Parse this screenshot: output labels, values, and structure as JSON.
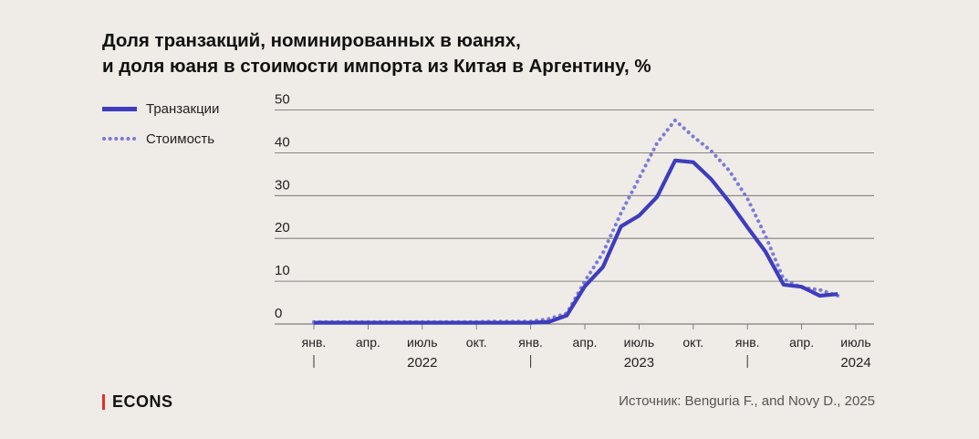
{
  "title_lines": [
    "Доля транзакций, номинированных в юанях,",
    "и доля юаня в стоимости импорта из Китая в Аргентину, %"
  ],
  "brand": "ECONS",
  "source": "Источник: Benguria F., and Novy D., 2025",
  "colors": {
    "background": "#efebe6",
    "series_transactions": "#3d3dbd",
    "series_value": "#7a7ad8",
    "grid": "#666666",
    "brand_accent": "#e0312a"
  },
  "chart_data": {
    "type": "line",
    "ylim": [
      0,
      50
    ],
    "yticks": [
      0,
      10,
      20,
      30,
      40,
      50
    ],
    "grid": true,
    "legend_placement": "left",
    "x_month_labels": [
      {
        "month": "2022-01",
        "label": "янв."
      },
      {
        "month": "2022-04",
        "label": "апр."
      },
      {
        "month": "2022-07",
        "label": "июль"
      },
      {
        "month": "2022-10",
        "label": "окт."
      },
      {
        "month": "2023-01",
        "label": "янв."
      },
      {
        "month": "2023-04",
        "label": "апр."
      },
      {
        "month": "2023-07",
        "label": "июль"
      },
      {
        "month": "2023-10",
        "label": "окт."
      },
      {
        "month": "2024-01",
        "label": "янв."
      },
      {
        "month": "2024-04",
        "label": "апр."
      },
      {
        "month": "2024-07",
        "label": "июль"
      }
    ],
    "x_year_labels": [
      {
        "month": "2022-07",
        "label": "2022"
      },
      {
        "month": "2023-07",
        "label": "2023"
      },
      {
        "month": "2024-07",
        "label": "2024"
      }
    ],
    "x_year_separators": [
      "2022-01",
      "2023-01",
      "2024-01"
    ],
    "series": [
      {
        "name": "Транзакции",
        "style": "solid",
        "points": [
          [
            "2022-01",
            0.3
          ],
          [
            "2022-02",
            0.3
          ],
          [
            "2022-03",
            0.3
          ],
          [
            "2022-04",
            0.3
          ],
          [
            "2022-05",
            0.3
          ],
          [
            "2022-06",
            0.3
          ],
          [
            "2022-07",
            0.3
          ],
          [
            "2022-08",
            0.3
          ],
          [
            "2022-09",
            0.3
          ],
          [
            "2022-10",
            0.3
          ],
          [
            "2022-11",
            0.3
          ],
          [
            "2022-12",
            0.3
          ],
          [
            "2023-01",
            0.3
          ],
          [
            "2023-02",
            0.5
          ],
          [
            "2023-03",
            2.0
          ],
          [
            "2023-04",
            8.8
          ],
          [
            "2023-05",
            13.3
          ],
          [
            "2023-06",
            22.8
          ],
          [
            "2023-07",
            25.3
          ],
          [
            "2023-08",
            29.7
          ],
          [
            "2023-09",
            38.2
          ],
          [
            "2023-10",
            37.8
          ],
          [
            "2023-11",
            33.8
          ],
          [
            "2023-12",
            28.5
          ],
          [
            "2024-01",
            22.6
          ],
          [
            "2024-02",
            16.9
          ],
          [
            "2024-03",
            9.2
          ],
          [
            "2024-04",
            8.7
          ],
          [
            "2024-05",
            6.6
          ],
          [
            "2024-06",
            7.0
          ]
        ]
      },
      {
        "name": "Стоимость",
        "style": "dotted",
        "points": [
          [
            "2022-01",
            0.5
          ],
          [
            "2022-02",
            0.5
          ],
          [
            "2022-03",
            0.5
          ],
          [
            "2022-04",
            0.5
          ],
          [
            "2022-05",
            0.5
          ],
          [
            "2022-06",
            0.5
          ],
          [
            "2022-07",
            0.5
          ],
          [
            "2022-08",
            0.5
          ],
          [
            "2022-09",
            0.5
          ],
          [
            "2022-10",
            0.5
          ],
          [
            "2022-11",
            0.6
          ],
          [
            "2022-12",
            0.6
          ],
          [
            "2023-01",
            0.6
          ],
          [
            "2023-02",
            1.2
          ],
          [
            "2023-03",
            2.5
          ],
          [
            "2023-04",
            10.0
          ],
          [
            "2023-05",
            16.6
          ],
          [
            "2023-06",
            25.9
          ],
          [
            "2023-07",
            34.0
          ],
          [
            "2023-08",
            42.3
          ],
          [
            "2023-09",
            47.6
          ],
          [
            "2023-10",
            43.8
          ],
          [
            "2023-11",
            40.4
          ],
          [
            "2023-12",
            35.8
          ],
          [
            "2024-01",
            29.3
          ],
          [
            "2024-02",
            20.6
          ],
          [
            "2024-03",
            10.5
          ],
          [
            "2024-04",
            8.5
          ],
          [
            "2024-05",
            8.0
          ],
          [
            "2024-06",
            6.6
          ]
        ]
      }
    ]
  }
}
